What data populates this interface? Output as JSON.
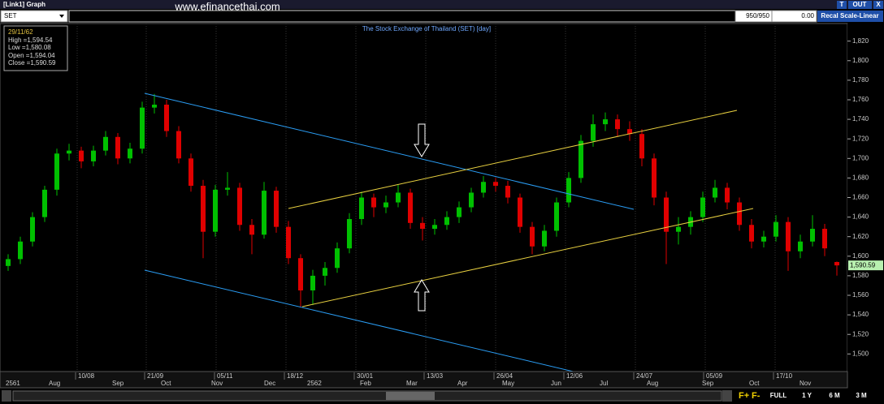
{
  "window": {
    "title": "[Link1] Graph",
    "buttons": [
      "T",
      "OUT",
      "X"
    ]
  },
  "toolbar": {
    "symbol": "SET",
    "watermark": "www.efinancethai.com",
    "count": "950/950",
    "change": "0.00",
    "scale_button": "Recal Scale-Linear"
  },
  "info": {
    "date": "29/11/62",
    "lines": [
      "High =1,594.54",
      "Low =1,580.08",
      "Open =1,594.04",
      "Close =1,590.59"
    ]
  },
  "chart_data": {
    "type": "candlestick",
    "title": "The Stock Exchange of Thailand (SET) [day]",
    "candles": [
      [
        1590,
        1602,
        1585,
        1597
      ],
      [
        1597,
        1620,
        1592,
        1615
      ],
      [
        1615,
        1645,
        1610,
        1640
      ],
      [
        1640,
        1672,
        1635,
        1668
      ],
      [
        1668,
        1710,
        1662,
        1705
      ],
      [
        1705,
        1715,
        1698,
        1708
      ],
      [
        1708,
        1712,
        1690,
        1697
      ],
      [
        1697,
        1713,
        1692,
        1708
      ],
      [
        1708,
        1728,
        1703,
        1722
      ],
      [
        1722,
        1726,
        1694,
        1700
      ],
      [
        1700,
        1716,
        1695,
        1710
      ],
      [
        1710,
        1758,
        1705,
        1752
      ],
      [
        1752,
        1766,
        1746,
        1755
      ],
      [
        1755,
        1760,
        1722,
        1728
      ],
      [
        1728,
        1733,
        1695,
        1700
      ],
      [
        1700,
        1705,
        1666,
        1672
      ],
      [
        1672,
        1678,
        1598,
        1625
      ],
      [
        1625,
        1673,
        1620,
        1668
      ],
      [
        1668,
        1686,
        1662,
        1670
      ],
      [
        1670,
        1675,
        1626,
        1632
      ],
      [
        1632,
        1638,
        1602,
        1622
      ],
      [
        1622,
        1676,
        1618,
        1667
      ],
      [
        1667,
        1671,
        1624,
        1630
      ],
      [
        1630,
        1636,
        1592,
        1598
      ],
      [
        1598,
        1602,
        1548,
        1565
      ],
      [
        1565,
        1586,
        1550,
        1580
      ],
      [
        1580,
        1594,
        1570,
        1588
      ],
      [
        1588,
        1614,
        1583,
        1608
      ],
      [
        1608,
        1644,
        1603,
        1638
      ],
      [
        1638,
        1666,
        1632,
        1660
      ],
      [
        1660,
        1664,
        1640,
        1650
      ],
      [
        1650,
        1662,
        1644,
        1655
      ],
      [
        1655,
        1673,
        1650,
        1665
      ],
      [
        1665,
        1669,
        1628,
        1634
      ],
      [
        1634,
        1640,
        1616,
        1628
      ],
      [
        1628,
        1638,
        1622,
        1632
      ],
      [
        1632,
        1646,
        1627,
        1640
      ],
      [
        1640,
        1656,
        1634,
        1650
      ],
      [
        1650,
        1670,
        1645,
        1665
      ],
      [
        1665,
        1682,
        1660,
        1676
      ],
      [
        1676,
        1680,
        1666,
        1672
      ],
      [
        1672,
        1677,
        1654,
        1660
      ],
      [
        1660,
        1664,
        1624,
        1630
      ],
      [
        1630,
        1635,
        1602,
        1610
      ],
      [
        1610,
        1632,
        1605,
        1626
      ],
      [
        1626,
        1660,
        1620,
        1655
      ],
      [
        1655,
        1686,
        1650,
        1680
      ],
      [
        1680,
        1724,
        1675,
        1718
      ],
      [
        1718,
        1745,
        1712,
        1735
      ],
      [
        1735,
        1747,
        1728,
        1740
      ],
      [
        1740,
        1745,
        1722,
        1730
      ],
      [
        1730,
        1738,
        1718,
        1725
      ],
      [
        1725,
        1730,
        1692,
        1700
      ],
      [
        1700,
        1705,
        1652,
        1660
      ],
      [
        1660,
        1666,
        1592,
        1625
      ],
      [
        1625,
        1640,
        1612,
        1630
      ],
      [
        1630,
        1646,
        1622,
        1640
      ],
      [
        1640,
        1666,
        1635,
        1660
      ],
      [
        1660,
        1678,
        1655,
        1670
      ],
      [
        1670,
        1675,
        1648,
        1655
      ],
      [
        1655,
        1660,
        1626,
        1632
      ],
      [
        1632,
        1638,
        1608,
        1615
      ],
      [
        1615,
        1626,
        1609,
        1620
      ],
      [
        1620,
        1642,
        1615,
        1635
      ],
      [
        1635,
        1640,
        1585,
        1605
      ],
      [
        1605,
        1622,
        1598,
        1615
      ],
      [
        1615,
        1642,
        1610,
        1628
      ],
      [
        1628,
        1633,
        1600,
        1608
      ],
      [
        1594.04,
        1594.54,
        1580.08,
        1590.59
      ]
    ],
    "ylim": [
      1482,
      1838
    ],
    "yticks": [
      {
        "value": 1500,
        "label": "1,500"
      },
      {
        "value": 1520,
        "label": "1,520"
      },
      {
        "value": 1540,
        "label": "1,540"
      },
      {
        "value": 1560,
        "label": "1,560"
      },
      {
        "value": 1580,
        "label": "1,580"
      },
      {
        "value": 1600,
        "label": "1,600"
      },
      {
        "value": 1620,
        "label": "1,620"
      },
      {
        "value": 1640,
        "label": "1,640"
      },
      {
        "value": 1660,
        "label": "1,660"
      },
      {
        "value": 1680,
        "label": "1,680"
      },
      {
        "value": 1700,
        "label": "1,700"
      },
      {
        "value": 1720,
        "label": "1,720"
      },
      {
        "value": 1740,
        "label": "1,740"
      },
      {
        "value": 1760,
        "label": "1,760"
      },
      {
        "value": 1780,
        "label": "1,780"
      },
      {
        "value": 1800,
        "label": "1,800"
      },
      {
        "value": 1820,
        "label": "1,820"
      }
    ],
    "last_label": "1,590.59",
    "x_dates": [
      "10/08",
      "21/09",
      "05/11",
      "18/12",
      "30/01",
      "13/03",
      "26/04",
      "12/06",
      "24/07",
      "05/09",
      "17/10"
    ],
    "x_months": [
      "2561",
      "Aug",
      "Sep",
      "Oct",
      "Nov",
      "Dec",
      "2562",
      "Feb",
      "Mar",
      "Apr",
      "May",
      "Jun",
      "Jul",
      "Aug",
      "Sep",
      "Oct",
      "Nov"
    ],
    "colors": {
      "up": "#00c000",
      "down": "#e00000"
    }
  },
  "footer": {
    "zoom": [
      "F+",
      "F-"
    ],
    "buttons": [
      "FULL",
      "1 Y",
      "6 M",
      "3 M"
    ]
  }
}
